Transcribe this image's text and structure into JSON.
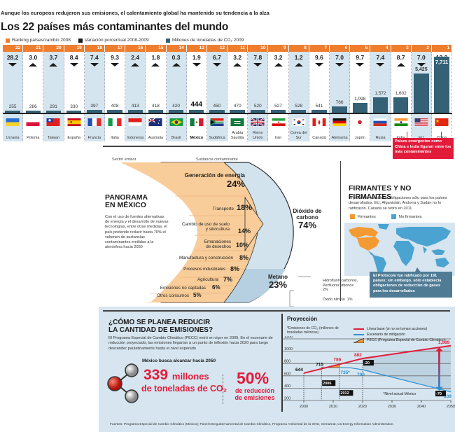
{
  "header": {
    "subtitle": "Aunque los europeos redujeron sus emisiones, el calentamiento global ha mantenido su tendencia a la alza",
    "title": "Los 22 países más contaminantes del mundo",
    "legend": [
      {
        "label": "Ranking países/cambio 2008",
        "color": "#ef7d2e"
      },
      {
        "label": "Variación porcentual 2008-2009",
        "color": "#1a1a1a"
      },
      {
        "label": "Millones de toneladas de CO₂ 2009",
        "color": "#346176"
      }
    ]
  },
  "countries_chart": {
    "type": "bar",
    "title": "Los 22 países más contaminantes del mundo",
    "unit": "Millones de toneladas de CO₂ 2009",
    "items": [
      {
        "rank": "22",
        "change": "28.2",
        "dir": "down",
        "value": 255,
        "value_label": "255",
        "country": "Ucrania",
        "flag": "ukraine"
      },
      {
        "rank": "21",
        "change": "3.0",
        "dir": "up",
        "value": 286,
        "value_label": "286",
        "country": "Polonia",
        "flag": "poland"
      },
      {
        "rank": "20",
        "change": "3.7",
        "dir": "up",
        "value": 291,
        "value_label": "291",
        "country": "Taiwan",
        "flag": "taiwan"
      },
      {
        "rank": "19",
        "change": "8.4",
        "dir": "down",
        "value": 330,
        "value_label": "330",
        "country": "España",
        "flag": "spain"
      },
      {
        "rank": "18",
        "change": "7.4",
        "dir": "down",
        "value": 397,
        "value_label": "397",
        "country": "Francia",
        "flag": "france"
      },
      {
        "rank": "17",
        "change": "9.3",
        "dir": "down",
        "value": 408,
        "value_label": "408",
        "country": "Italia",
        "flag": "italy"
      },
      {
        "rank": "16",
        "change": "2.4",
        "dir": "up",
        "value": 413,
        "value_label": "413",
        "country": "Indonesia",
        "flag": "indonesia"
      },
      {
        "rank": "15",
        "change": "1.8",
        "dir": "up",
        "value": 418,
        "value_label": "418",
        "country": "Australia",
        "flag": "australia"
      },
      {
        "rank": "14",
        "change": "0.3",
        "dir": "up",
        "value": 420,
        "value_label": "420",
        "country": "Brasil",
        "flag": "brazil"
      },
      {
        "rank": "13",
        "change": "1.9",
        "dir": "down",
        "value": 444,
        "value_label": "444",
        "country": "México",
        "flag": "mexico",
        "highlight": true
      },
      {
        "rank": "12",
        "change": "6.7",
        "dir": "down",
        "value": 450,
        "value_label": "450",
        "country": "Sudáfrica",
        "flag": "southafrica"
      },
      {
        "rank": "11",
        "change": "3.2",
        "dir": "up",
        "value": 470,
        "value_label": "470",
        "country": "Arabia Saudita",
        "flag": "saudi"
      },
      {
        "rank": "10",
        "change": "7.8",
        "dir": "down",
        "value": 520,
        "value_label": "520",
        "country": "Reino Unido",
        "flag": "uk"
      },
      {
        "rank": "9",
        "change": "3.2",
        "dir": "up",
        "value": 527,
        "value_label": "527",
        "country": "Irán",
        "flag": "iran"
      },
      {
        "rank": "8",
        "change": "1.2",
        "dir": "up",
        "value": 528,
        "value_label": "528",
        "country": "Corea del Sur",
        "flag": "korea"
      },
      {
        "rank": "7",
        "change": "9.6",
        "dir": "down",
        "value": 541,
        "value_label": "541",
        "country": "Canadá",
        "flag": "canada"
      },
      {
        "rank": "6",
        "change": "7.0",
        "dir": "down",
        "value": 766,
        "value_label": "766",
        "country": "Alemania",
        "flag": "germany"
      },
      {
        "rank": "5",
        "change": "9.7",
        "dir": "down",
        "value": 1098,
        "value_label": "1,098",
        "country": "Japón",
        "flag": "japan"
      },
      {
        "rank": "4",
        "change": "7.4",
        "dir": "down",
        "value": 1572,
        "value_label": "1,572",
        "country": "Rusia",
        "flag": "russia"
      },
      {
        "rank": "3",
        "change": "8.7",
        "dir": "up",
        "value": 1602,
        "value_label": "1,602",
        "country": "India",
        "flag": "india"
      },
      {
        "rank": "2",
        "change": "7.0",
        "dir": "down",
        "value": 5425,
        "value_label": "5,425",
        "country": "EU",
        "flag": "usa"
      },
      {
        "rank": "1",
        "change": "13.3",
        "dir": "up",
        "value": 7711,
        "value_label": "7,711",
        "country": "China",
        "flag": "china"
      }
    ],
    "callout": "Países emergentes como China e India figuran entre los más contaminantes",
    "callout_color": "#e31b3b"
  },
  "panorama": {
    "title_line1": "PANORAMA",
    "title_line2": "EN MÉXICO",
    "text": "Con el uso de fuentes alternativas de energía y el desarrollo de nuevas tecnologías, entre otras medidas, el país pretende reducir hasta 70% el volumen de sustancias contaminantes emitidas a la atmósfera hacia 2050",
    "sector_header": "Sector emisor",
    "substance_header": "Sustancia contaminante",
    "sectors": [
      {
        "label": "Generación de energía",
        "pct": "24%"
      },
      {
        "label": "Transporte",
        "pct": "18%"
      },
      {
        "label": "Cambio de uso de suelo y silvicultura",
        "pct": "14%"
      },
      {
        "label": "Emanaciones de desechos",
        "pct": "10%"
      },
      {
        "label": "Manufactura y construcción",
        "pct": "8%"
      },
      {
        "label": "Procesos industriales",
        "pct": "8%"
      },
      {
        "label": "Agricultura",
        "pct": "7%"
      },
      {
        "label": "Emisiones no captadas",
        "pct": "6%"
      },
      {
        "label": "Otros consumos",
        "pct": "5%"
      }
    ],
    "substances": [
      {
        "label": "Dióxido de carbono",
        "pct": "74%"
      },
      {
        "label": "Metano",
        "pct": "23%"
      },
      {
        "label": "Hidrofluorocarbonos, Perfluorocarbonos",
        "pct": "2%"
      },
      {
        "label": "Óxido nitroso",
        "pct": "1%"
      }
    ]
  },
  "firmantes": {
    "title": "FIRMANTES Y NO FIRMANTES",
    "text": "El protocolo establecía obligaciones sólo para los países desarrollados. EU, Afganistán, Andorra y Sudán no lo ratificaron. Canadá se retiró en 2011",
    "legend": [
      {
        "label": "Firmantes",
        "color": "#f39a35"
      },
      {
        "label": "No firmantes",
        "color": "#4aa3d0"
      }
    ],
    "note": "El Protocolo fue ratificado por 191 países; sin embargo, sólo establecía obligaciones de reducción de gases para los desarrollados"
  },
  "reduction": {
    "title_line1": "¿CÓMO SE PLANEA REDUCIR",
    "title_line2": "LA CANTIDAD DE EMISIONES?",
    "text": "El Programa Especial de Cambio Climático (PECC) entró en vigor en 2009. En el escenario de reducción proyectado, las emisiones llegarían a un punto de inflexión hacia 2020 para luego descender paulatinamente hasta el nivel esperado",
    "goal_label": "México busca alcanzar hacia 2050",
    "goal1_number": "339",
    "goal1_unit": "millones",
    "goal1_sub": "de toneladas de CO₂",
    "goal2_number": "50%",
    "goal2_sub_line1": "de reducción",
    "goal2_sub_line2": "de emisiones"
  },
  "chart_data": {
    "type": "line",
    "title": "Proyección",
    "ylabel": "*Emisiones de CO₂ (millones de toneladas métricas)",
    "xlabel": "",
    "ylim": [
      200,
      1200
    ],
    "xlim": [
      1998,
      2050
    ],
    "yticks": [
      200,
      400,
      600,
      800,
      1000,
      1200
    ],
    "xticks": [
      2000,
      2010,
      2020,
      2030,
      2040,
      2050
    ],
    "grid": true,
    "legend_position": "top-right",
    "series": [
      {
        "name": "Línea base (si no se toman acciones)",
        "color": "#e31b3b",
        "x": [
          2000,
          2006,
          2012,
          2020,
          2050
        ],
        "y": [
          644,
          715,
          786,
          882,
          1089
        ]
      },
      {
        "name": "Escenario de mitigación",
        "color": "#2e8fd0",
        "x": [
          2012,
          2016,
          2020,
          2050
        ],
        "y": [
          735,
          730,
          700,
          339
        ]
      }
    ],
    "pecc_label": "PECC (Programa Especial de Cambio Climático)",
    "annotations": [
      {
        "text": "644",
        "x": 2000,
        "y": 644
      },
      {
        "text": "715",
        "x": 2006,
        "y": 715
      },
      {
        "text": "786",
        "x": 2012,
        "y": 786
      },
      {
        "text": "882",
        "x": 2020,
        "y": 882
      },
      {
        "text": "1,089",
        "x": 2050,
        "y": 1089
      },
      {
        "text": "735*",
        "x": 2012,
        "y": 735
      },
      {
        "text": "700",
        "x": 2020,
        "y": 700
      },
      {
        "text": "339",
        "x": 2050,
        "y": 339
      },
      {
        "text": "-20",
        "x": 2020,
        "y": 790
      },
      {
        "text": "-70",
        "x": 2045,
        "y": 290
      },
      {
        "text": "2006",
        "x": 2006,
        "y": 460
      },
      {
        "text": "2012",
        "x": 2012,
        "y": 300
      }
    ],
    "note": "*Nivel actual México"
  },
  "footer": {
    "sources": "Fuentes: Programa Especial de Cambio Climático (México); Panel Intergubernamental de Cambio Climático, Programa Ambiental de la ONU, Semarnat, Us Energy Information Administration."
  }
}
